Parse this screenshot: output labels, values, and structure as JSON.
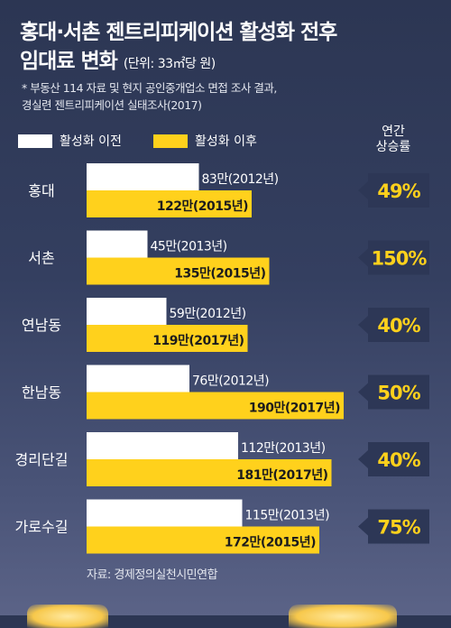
{
  "title": {
    "line1": "홍대·서촌 젠트리피케이션 활성화 전후",
    "line2": "임대료 변화",
    "unit": "(단위: 33㎡당 원)"
  },
  "note": "* 부동산 114 자료 및 현지 공인중개업소 면접 조사 결과,\n경실련 젠트리피케이션 실태조사(2017)",
  "source": "자료: 경제정의실천시민연합",
  "growth_header": [
    "연간",
    "상승률"
  ],
  "colors": {
    "before": "#ffffff",
    "after": "#ffd11c",
    "badge": "#2d3756",
    "badge_text": "#ffd11c",
    "label_text": "#1c1c1c"
  },
  "chart_data": {
    "type": "bar",
    "orientation": "horizontal",
    "categories": [
      "홍대",
      "서촌",
      "연남동",
      "한남동",
      "경리단길",
      "가로수길"
    ],
    "series": [
      {
        "name": "활성화 이전",
        "values": [
          83,
          45,
          59,
          76,
          112,
          115
        ],
        "labels": [
          "83만(2012년)",
          "45만(2013년)",
          "59만(2012년)",
          "76만(2012년)",
          "112만(2013년)",
          "115만(2013년)"
        ]
      },
      {
        "name": "활성화 이후",
        "values": [
          122,
          135,
          119,
          190,
          181,
          172
        ],
        "labels": [
          "122만(2015년)",
          "135만(2015년)",
          "119만(2017년)",
          "190만(2017년)",
          "181만(2017년)",
          "172만(2015년)"
        ]
      }
    ],
    "growth_rates": [
      "49%",
      "150%",
      "40%",
      "50%",
      "40%",
      "75%"
    ],
    "unit": "만원 (33㎡당)",
    "xlim": [
      0,
      200
    ],
    "grid": false,
    "legend": "top-left"
  }
}
